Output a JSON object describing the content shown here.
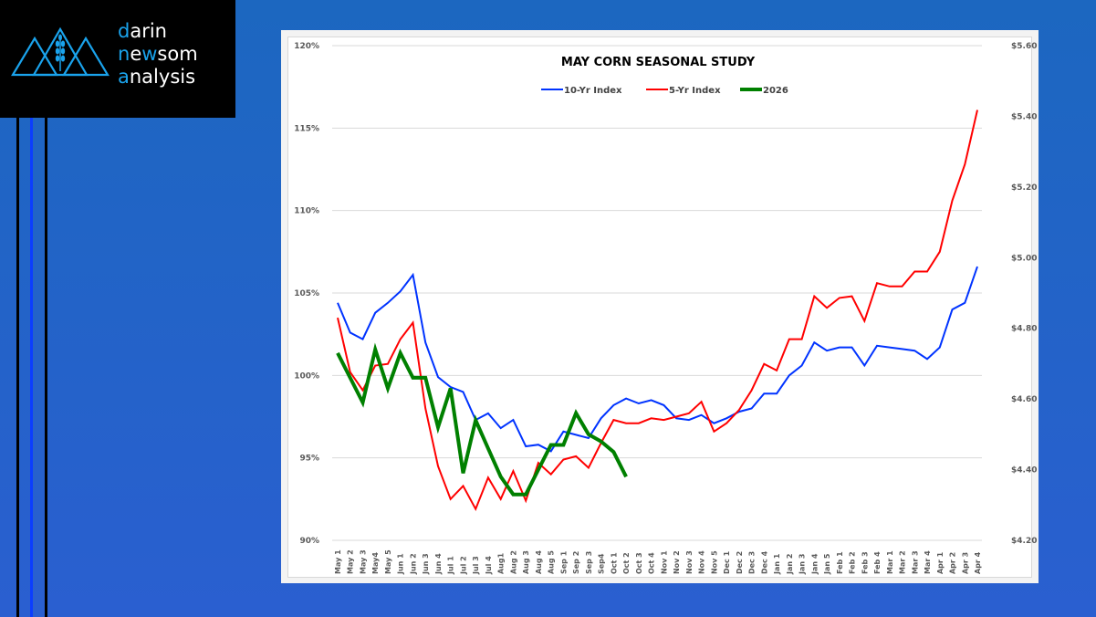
{
  "brand": {
    "line1_first": "d",
    "line1_rest": "arin",
    "line2_first": "n",
    "line2_mid": "e",
    "line2_hl": "w",
    "line2_rest": "som",
    "line3_first": "a",
    "line3_rest": "nalysis",
    "accent_color": "#1aa3ec",
    "logo_icon": "mountains-wheat-icon"
  },
  "chart_data": {
    "type": "line",
    "title": "MAY CORN SEASONAL STUDY",
    "xlabel": "",
    "ylabel_left": "",
    "ylabel_right": "",
    "categories": [
      "May 1",
      "May 2",
      "May 3",
      "May4",
      "May 5",
      "Jun 1",
      "Jun 2",
      "Jun 3",
      "Jun 4",
      "Jul 1",
      "Jul 2",
      "Jul 3",
      "Jul 4",
      "Aug1",
      "Aug 2",
      "Aug 3",
      "Aug 4",
      "Aug 5",
      "Sep 1",
      "Sep 2",
      "Sep 3",
      "Sep4",
      "Oct 1",
      "Oct 2",
      "Oct 3",
      "Oct 4",
      "Nov 1",
      "Nov 2",
      "Nov 3",
      "Nov 4",
      "Nov 5",
      "Dec 1",
      "Dec 2",
      "Dec 3",
      "Dec 4",
      "Jan 1",
      "Jan 2",
      "Jan 3",
      "Jan 4",
      "Jan 5",
      "Feb 1",
      "Feb 2",
      "Feb 3",
      "Feb 4",
      "Mar 1",
      "Mar 2",
      "Mar 3",
      "Mar 4",
      "Apr 1",
      "Apr 2",
      "Apr 3",
      "Apr 4"
    ],
    "y_left": {
      "min": 90,
      "max": 120,
      "step": 5,
      "tick_labels": [
        "90%",
        "95%",
        "100%",
        "105%",
        "110%",
        "115%",
        "120%"
      ]
    },
    "y_right": {
      "min": 4.2,
      "max": 5.6,
      "step": 0.2,
      "tick_labels": [
        "$4.20",
        "$4.40",
        "$4.60",
        "$4.80",
        "$5.00",
        "$5.20",
        "$5.40",
        "$5.60"
      ]
    },
    "grid": true,
    "legend_position": "top-center",
    "series": [
      {
        "name": "10-Yr Index",
        "axis": "left",
        "color": "#0033ff",
        "values": [
          104.4,
          102.6,
          102.2,
          103.8,
          104.4,
          105.1,
          106.1,
          102.0,
          99.9,
          99.3,
          99.0,
          97.3,
          97.7,
          96.8,
          97.3,
          95.7,
          95.8,
          95.4,
          96.6,
          96.4,
          96.2,
          97.4,
          98.2,
          98.6,
          98.3,
          98.5,
          98.2,
          97.4,
          97.3,
          97.6,
          97.1,
          97.4,
          97.8,
          98.0,
          98.9,
          98.9,
          100.0,
          100.6,
          102.0,
          101.5,
          101.7,
          101.7,
          100.6,
          101.8,
          101.7,
          101.6,
          101.5,
          101.0,
          101.7,
          104.0,
          104.4,
          106.6
        ]
      },
      {
        "name": "5-Yr Index",
        "axis": "left",
        "color": "#ff0000",
        "values": [
          103.5,
          100.2,
          99.1,
          100.6,
          100.7,
          102.2,
          103.2,
          98.0,
          94.5,
          92.5,
          93.3,
          91.9,
          93.8,
          92.5,
          94.2,
          92.4,
          94.7,
          94.0,
          94.9,
          95.1,
          94.4,
          95.9,
          97.3,
          97.1,
          97.1,
          97.4,
          97.3,
          97.5,
          97.7,
          98.4,
          96.6,
          97.1,
          97.9,
          99.1,
          100.7,
          100.3,
          102.2,
          102.2,
          104.8,
          104.1,
          104.7,
          104.8,
          103.3,
          105.6,
          105.4,
          105.4,
          106.3,
          106.3,
          107.5,
          110.6,
          112.8,
          116.1
        ]
      },
      {
        "name": "2026",
        "axis": "right",
        "color": "#008000",
        "values": [
          4.73,
          4.66,
          4.59,
          4.74,
          4.63,
          4.73,
          4.66,
          4.66,
          4.52,
          4.63,
          4.39,
          4.54,
          4.46,
          4.38,
          4.33,
          4.33,
          4.4,
          4.47,
          4.47,
          4.56,
          4.5,
          4.48,
          4.45,
          4.38
        ]
      }
    ]
  }
}
